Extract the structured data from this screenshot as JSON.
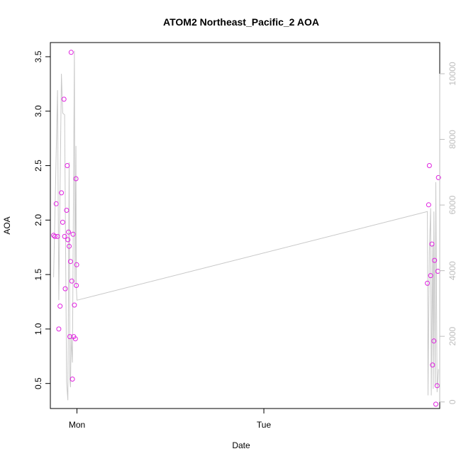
{
  "chart_data": {
    "type": "scatter",
    "title": "ATOM2 Northeast_Pacific_2 AOA",
    "xlabel": "Date",
    "ylabel": "AOA",
    "x_tick_labels": [
      "Mon",
      "Tue"
    ],
    "y_ticks": [
      0.5,
      1.0,
      1.5,
      2.0,
      2.5,
      3.0,
      3.5
    ],
    "y_tick_labels": [
      "0.5",
      "1.0",
      "1.5",
      "2.0",
      "2.5",
      "3.0",
      "3.5"
    ],
    "ylim": [
      0.27,
      3.63
    ],
    "secondary_y_ticks": [
      0,
      2000,
      4000,
      6000,
      8000,
      10000
    ],
    "secondary_y_tick_labels": [
      "0",
      "2000",
      "4000",
      "6000",
      "8000",
      "10000"
    ],
    "secondary_ylim": [
      -200,
      10950
    ],
    "grid": false,
    "colors": {
      "points": "#e020e0",
      "line": "#c8c8c8",
      "right_axis": "#bdbdbd"
    },
    "series": [
      {
        "type": "scatter",
        "axis": "left",
        "points": [
          {
            "t": "Sun 21:00",
            "y": 1.86
          },
          {
            "t": "Sun 21:10",
            "y": 1.85
          },
          {
            "t": "Sun 21:20",
            "y": 2.15
          },
          {
            "t": "Sun 21:30",
            "y": 1.85
          },
          {
            "t": "Sun 21:40",
            "y": 1.0
          },
          {
            "t": "Sun 21:50",
            "y": 1.21
          },
          {
            "t": "Sun 22:00",
            "y": 2.25
          },
          {
            "t": "Sun 22:10",
            "y": 1.98
          },
          {
            "t": "Sun 22:20",
            "y": 3.11
          },
          {
            "t": "Sun 22:25",
            "y": 1.85
          },
          {
            "t": "Sun 22:30",
            "y": 1.37
          },
          {
            "t": "Sun 22:40",
            "y": 2.09
          },
          {
            "t": "Sun 22:45",
            "y": 2.5
          },
          {
            "t": "Sun 22:50",
            "y": 1.82
          },
          {
            "t": "Sun 22:55",
            "y": 1.89
          },
          {
            "t": "Sun 23:00",
            "y": 1.76
          },
          {
            "t": "Sun 23:05",
            "y": 0.93
          },
          {
            "t": "Sun 23:10",
            "y": 1.62
          },
          {
            "t": "Sun 23:15",
            "y": 3.54
          },
          {
            "t": "Sun 23:20",
            "y": 1.44
          },
          {
            "t": "Sun 23:25",
            "y": 0.54
          },
          {
            "t": "Sun 23:30",
            "y": 1.87
          },
          {
            "t": "Sun 23:35",
            "y": 0.93
          },
          {
            "t": "Sun 23:40",
            "y": 1.22
          },
          {
            "t": "Sun 23:48",
            "y": 0.91
          },
          {
            "t": "Sun 23:52",
            "y": 2.38
          },
          {
            "t": "Sun 23:55",
            "y": 1.4
          },
          {
            "t": "Sun 23:58",
            "y": 1.59
          },
          {
            "t": "Tue 21:00",
            "y": 1.42
          },
          {
            "t": "Tue 21:10",
            "y": 2.14
          },
          {
            "t": "Tue 21:15",
            "y": 2.5
          },
          {
            "t": "Tue 21:25",
            "y": 1.49
          },
          {
            "t": "Tue 21:35",
            "y": 1.78
          },
          {
            "t": "Tue 21:40",
            "y": 0.67
          },
          {
            "t": "Tue 21:50",
            "y": 0.89
          },
          {
            "t": "Tue 21:55",
            "y": 1.63
          },
          {
            "t": "Tue 22:05",
            "y": 0.31
          },
          {
            "t": "Tue 22:15",
            "y": 0.48
          },
          {
            "t": "Tue 22:20",
            "y": 1.53
          },
          {
            "t": "Tue 22:25",
            "y": 2.39
          }
        ]
      },
      {
        "type": "line",
        "axis": "right",
        "points": [
          {
            "t": "Sun 21:00",
            "y": 3800
          },
          {
            "t": "Sun 21:30",
            "y": 9500
          },
          {
            "t": "Sun 21:40",
            "y": 3100
          },
          {
            "t": "Sun 22:00",
            "y": 10000
          },
          {
            "t": "Sun 22:10",
            "y": 8800
          },
          {
            "t": "Sun 22:25",
            "y": 8750
          },
          {
            "t": "Sun 22:40",
            "y": 600
          },
          {
            "t": "Sun 22:50",
            "y": 50
          },
          {
            "t": "Sun 23:00",
            "y": 7300
          },
          {
            "t": "Sun 23:05",
            "y": 700
          },
          {
            "t": "Sun 23:10",
            "y": 450
          },
          {
            "t": "Sun 23:15",
            "y": 2000
          },
          {
            "t": "Sun 23:25",
            "y": 1200
          },
          {
            "t": "Sun 23:40",
            "y": 10700
          },
          {
            "t": "Sun 23:45",
            "y": 3600
          },
          {
            "t": "Sun 23:52",
            "y": 7800
          },
          {
            "t": "Sun 23:55",
            "y": 3500
          },
          {
            "t": "Mon 00:00",
            "y": 3100
          },
          {
            "t": "Tue 21:00",
            "y": 5800
          },
          {
            "t": "Tue 21:05",
            "y": 200
          },
          {
            "t": "Tue 21:15",
            "y": 4600
          },
          {
            "t": "Tue 21:25",
            "y": 5900
          },
          {
            "t": "Tue 21:30",
            "y": 200
          },
          {
            "t": "Tue 21:40",
            "y": 4800
          },
          {
            "t": "Tue 21:45",
            "y": 400
          },
          {
            "t": "Tue 21:50",
            "y": 5800
          },
          {
            "t": "Tue 22:00",
            "y": 500
          },
          {
            "t": "Tue 22:05",
            "y": 6700
          },
          {
            "t": "Tue 22:15",
            "y": 300
          },
          {
            "t": "Tue 22:25",
            "y": 1000
          }
        ]
      }
    ],
    "x_range": [
      "Sun 20:35",
      "Tue 22:35"
    ]
  }
}
